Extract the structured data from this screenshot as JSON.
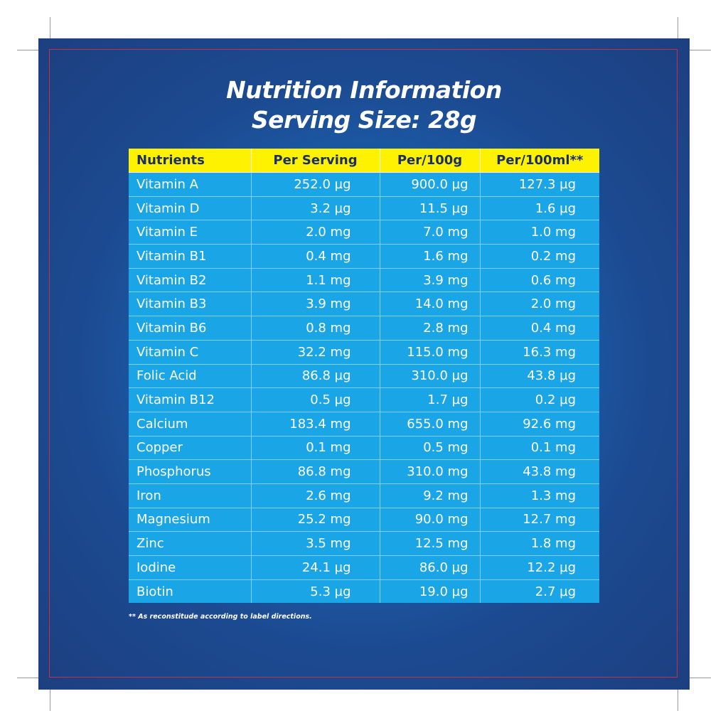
{
  "title_line1": "Nutrition Information",
  "title_line2": "Serving Size: 28g",
  "colors": {
    "panel": "#1d3f80",
    "header_bg": "#fff200",
    "header_text": "#1b2f6b",
    "cell_bg": "#1aa6e6",
    "trim_line": "#c0314a"
  },
  "table": {
    "headers": [
      "Nutrients",
      "Per Serving",
      "Per/100g",
      "Per/100ml**"
    ],
    "rows": [
      [
        "Vitamin A",
        "252.0 µg",
        "900.0 µg",
        "127.3 µg"
      ],
      [
        "Vitamin D",
        "3.2 µg",
        "11.5 µg",
        "1.6 µg"
      ],
      [
        "Vitamin E",
        "2.0 mg",
        "7.0 mg",
        "1.0 mg"
      ],
      [
        "Vitamin B1",
        "0.4 mg",
        "1.6 mg",
        "0.2 mg"
      ],
      [
        "Vitamin B2",
        "1.1 mg",
        "3.9 mg",
        "0.6 mg"
      ],
      [
        "Vitamin B3",
        "3.9 mg",
        "14.0 mg",
        "2.0 mg"
      ],
      [
        "Vitamin B6",
        "0.8 mg",
        "2.8 mg",
        "0.4 mg"
      ],
      [
        "Vitamin C",
        "32.2 mg",
        "115.0 mg",
        "16.3 mg"
      ],
      [
        "Folic Acid",
        "86.8 µg",
        "310.0 µg",
        "43.8 µg"
      ],
      [
        "Vitamin B12",
        "0.5 µg",
        "1.7 µg",
        "0.2 µg"
      ],
      [
        "Calcium",
        "183.4 mg",
        "655.0 mg",
        "92.6 mg"
      ],
      [
        "Copper",
        "0.1 mg",
        "0.5 mg",
        "0.1 mg"
      ],
      [
        "Phosphorus",
        "86.8 mg",
        "310.0 mg",
        "43.8 mg"
      ],
      [
        "Iron",
        "2.6 mg",
        "9.2 mg",
        "1.3 mg"
      ],
      [
        "Magnesium",
        "25.2 mg",
        "90.0 mg",
        "12.7 mg"
      ],
      [
        "Zinc",
        "3.5 mg",
        "12.5 mg",
        "1.8 mg"
      ],
      [
        "Iodine",
        "24.1 µg",
        "86.0 µg",
        "12.2 µg"
      ],
      [
        "Biotin",
        "5.3 µg",
        "19.0 µg",
        "2.7 µg"
      ]
    ]
  },
  "footnote": "** As reconstitude according to label directions."
}
